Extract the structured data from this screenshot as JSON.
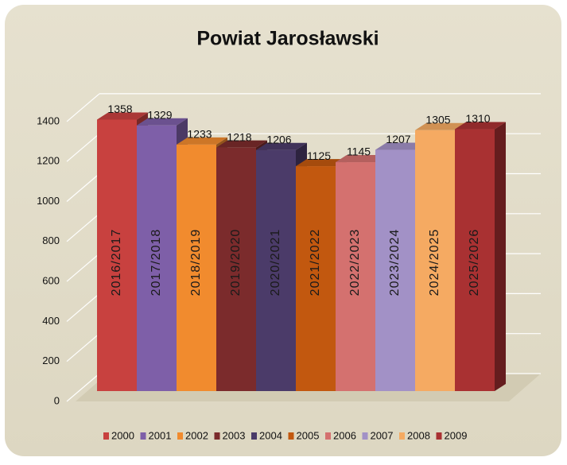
{
  "chart_data": {
    "type": "bar",
    "title": "Powiat Jarosławski",
    "categories": [
      "2016/2017",
      "2017/2018",
      "2018/2019",
      "2019/2020",
      "2020/2021",
      "2021/2022",
      "2022/2023",
      "2023/2024",
      "2024/2025",
      "2025/2026"
    ],
    "series": [
      {
        "name": "2000",
        "color": "#c8413f",
        "values": [
          1358,
          null,
          null,
          null,
          null,
          null,
          null,
          null,
          null,
          null
        ]
      },
      {
        "name": "2001",
        "color": "#7e5fa8",
        "values": [
          null,
          1329,
          null,
          null,
          null,
          null,
          null,
          null,
          null,
          null
        ]
      },
      {
        "name": "2002",
        "color": "#f18b2e",
        "values": [
          null,
          null,
          1233,
          null,
          null,
          null,
          null,
          null,
          null,
          null
        ]
      },
      {
        "name": "2003",
        "color": "#7b2b2c",
        "values": [
          null,
          null,
          null,
          1218,
          null,
          null,
          null,
          null,
          null,
          null
        ]
      },
      {
        "name": "2004",
        "color": "#4b3b69",
        "values": [
          null,
          null,
          null,
          null,
          1206,
          null,
          null,
          null,
          null,
          null
        ]
      },
      {
        "name": "2005",
        "color": "#c2580f",
        "values": [
          null,
          null,
          null,
          null,
          null,
          1125,
          null,
          null,
          null,
          null
        ]
      },
      {
        "name": "2006",
        "color": "#d4716f",
        "values": [
          null,
          null,
          null,
          null,
          null,
          null,
          1145,
          null,
          null,
          null
        ]
      },
      {
        "name": "2007",
        "color": "#a291c6",
        "values": [
          null,
          null,
          null,
          null,
          null,
          null,
          null,
          1207,
          null,
          null
        ]
      },
      {
        "name": "2008",
        "color": "#f5aa62",
        "values": [
          null,
          null,
          null,
          null,
          null,
          null,
          null,
          null,
          1305,
          null
        ]
      },
      {
        "name": "2009",
        "color": "#a93132",
        "values": [
          null,
          null,
          null,
          null,
          null,
          null,
          null,
          null,
          null,
          1310
        ]
      }
    ],
    "ylim": [
      0,
      1600
    ],
    "yticks": [
      0,
      200,
      400,
      600,
      800,
      1000,
      1200,
      1400
    ],
    "grid": true
  }
}
